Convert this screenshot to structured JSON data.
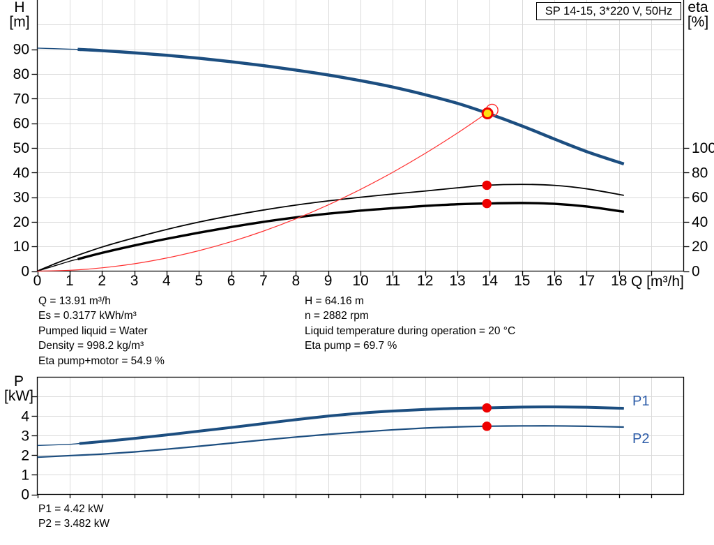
{
  "title_box": "SP 14-15, 3*220 V, 50Hz",
  "colors": {
    "curve_blue": "#1c4e80",
    "eta_black": "#000000",
    "system_red": "#ff3030",
    "dot_red": "#ee0000",
    "point_yellow": "#ffe011",
    "grid_gray": "#dadada",
    "axis_black": "#000000",
    "label_blue": "#2d5ca8"
  },
  "top_chart": {
    "y_axis_title": [
      "H",
      "[m]"
    ],
    "y2_axis_title": [
      "eta",
      "[%]"
    ],
    "x_axis_title": "Q [m³/h]"
  },
  "bottom_chart": {
    "y_axis_title": [
      "P",
      "[kW]"
    ],
    "series_labels": [
      "P1",
      "P2"
    ]
  },
  "info_top_left": [
    "Q = 13.91 m³/h",
    "Es = 0.3177 kWh/m³",
    "Pumped liquid = Water",
    "Density = 998.2 kg/m³",
    "Eta pump+motor = 54.9 %"
  ],
  "info_top_right": [
    "H = 64.16 m",
    "n = 2882 rpm",
    "Liquid temperature during operation = 20 °C",
    "Eta pump = 69.7 %"
  ],
  "info_bottom": [
    "P1 = 4.42 kW",
    "P2 = 3.482 kW"
  ],
  "chart_data": [
    {
      "type": "line",
      "title": "SP 14-15, 3*220 V, 50Hz",
      "xlabel": "Q [m³/h]",
      "ylabel": "H [m]",
      "y2label": "eta [%]",
      "xlim": [
        0,
        20
      ],
      "ylim": [
        0,
        110
      ],
      "y2lim": [
        0,
        220
      ],
      "grid": true,
      "legend_position": "none",
      "x_ticks": [
        0,
        1,
        2,
        3,
        4,
        5,
        6,
        7,
        8,
        9,
        10,
        11,
        12,
        13,
        14,
        15,
        16,
        17,
        18
      ],
      "y_ticks": [
        0,
        10,
        20,
        30,
        40,
        50,
        60,
        70,
        80,
        90
      ],
      "y2_ticks": [
        0,
        20,
        40,
        60,
        80,
        100
      ],
      "series": [
        {
          "name": "head-curve",
          "axis": "y",
          "color": "#1c4e80",
          "width": 4.4,
          "thin_width": 1.4,
          "thick_from": 1.25,
          "points": [
            [
              0,
              90.5
            ],
            [
              1,
              90.1
            ],
            [
              1.25,
              90.0
            ],
            [
              2,
              89.5
            ],
            [
              3,
              88.6
            ],
            [
              4,
              87.6
            ],
            [
              5,
              86.4
            ],
            [
              6,
              85.0
            ],
            [
              7,
              83.4
            ],
            [
              8,
              81.6
            ],
            [
              9,
              79.6
            ],
            [
              10,
              77.3
            ],
            [
              11,
              74.7
            ],
            [
              12,
              71.6
            ],
            [
              13,
              68.1
            ],
            [
              13.91,
              64.16
            ],
            [
              15,
              58.9
            ],
            [
              16,
              53.6
            ],
            [
              17,
              48.5
            ],
            [
              18.15,
              43.5
            ]
          ]
        },
        {
          "name": "eta-pump",
          "axis": "y2",
          "color": "#000000",
          "width": 1.8,
          "points": [
            [
              0,
              0
            ],
            [
              0.5,
              5.5
            ],
            [
              1,
              10.5
            ],
            [
              2,
              19.5
            ],
            [
              3,
              27.0
            ],
            [
              4,
              33.8
            ],
            [
              5,
              39.8
            ],
            [
              6,
              45.0
            ],
            [
              7,
              49.6
            ],
            [
              8,
              53.6
            ],
            [
              9,
              57.0
            ],
            [
              10,
              60.0
            ],
            [
              11,
              62.6
            ],
            [
              12,
              65.0
            ],
            [
              13,
              67.6
            ],
            [
              13.91,
              69.7
            ],
            [
              15,
              70.4
            ],
            [
              16,
              69.6
            ],
            [
              17,
              66.8
            ],
            [
              18.15,
              61.5
            ]
          ]
        },
        {
          "name": "eta-pump-motor",
          "axis": "y2",
          "color": "#000000",
          "width": 3.4,
          "thin_width": 1.4,
          "thick_from": 1.25,
          "points": [
            [
              0,
              0
            ],
            [
              0.5,
              4.0
            ],
            [
              1,
              8.0
            ],
            [
              1.25,
              9.7
            ],
            [
              2,
              14.8
            ],
            [
              3,
              20.8
            ],
            [
              4,
              26.2
            ],
            [
              5,
              31.2
            ],
            [
              6,
              35.8
            ],
            [
              7,
              40.0
            ],
            [
              8,
              43.6
            ],
            [
              9,
              46.6
            ],
            [
              10,
              49.1
            ],
            [
              11,
              51.1
            ],
            [
              12,
              52.9
            ],
            [
              13,
              54.3
            ],
            [
              13.91,
              54.9
            ],
            [
              15,
              55.3
            ],
            [
              16,
              54.6
            ],
            [
              17,
              52.4
            ],
            [
              18.15,
              48.2
            ]
          ]
        },
        {
          "name": "system-curve",
          "axis": "y",
          "color": "#ff3030",
          "width": 1.2,
          "points": [
            [
              0,
              0
            ],
            [
              1,
              0.33
            ],
            [
              2,
              1.33
            ],
            [
              3,
              2.98
            ],
            [
              4,
              5.31
            ],
            [
              5,
              8.29
            ],
            [
              6,
              11.94
            ],
            [
              7,
              16.25
            ],
            [
              8,
              21.22
            ],
            [
              9,
              26.86
            ],
            [
              10,
              33.16
            ],
            [
              11,
              40.12
            ],
            [
              12,
              47.75
            ],
            [
              13,
              56.04
            ],
            [
              13.91,
              64.16
            ]
          ]
        }
      ],
      "markers": [
        {
          "name": "duty-point-ring",
          "axis": "y",
          "x": 14.07,
          "y": 65.3,
          "r": 8.5,
          "fill": "none",
          "stroke": "#ff3030",
          "sw": 1.4
        },
        {
          "name": "rated-duty-point",
          "axis": "y",
          "x": 13.93,
          "y": 64.0,
          "r": 7,
          "fill": "#ffe011",
          "stroke": "#ee0000",
          "sw": 3
        },
        {
          "name": "eta-pump-dot",
          "axis": "y2",
          "x": 13.91,
          "y": 69.7,
          "r": 6.7,
          "fill": "#ee0000"
        },
        {
          "name": "eta-pump-motor-dot",
          "axis": "y2",
          "x": 13.91,
          "y": 54.9,
          "r": 6.7,
          "fill": "#ee0000"
        }
      ],
      "annotations": {
        "operating_point": {
          "Q_m3h": 13.91,
          "H_m": 64.16,
          "eta_pump_pct": 69.7,
          "eta_pump_motor_pct": 54.9
        }
      }
    },
    {
      "type": "line",
      "title": "",
      "xlabel": "",
      "ylabel": "P [kW]",
      "xlim": [
        0,
        20
      ],
      "ylim": [
        0,
        6
      ],
      "grid": true,
      "legend_position": "right-inline",
      "x_ticks": [],
      "y_ticks": [
        0,
        1,
        2,
        3,
        4
      ],
      "y_ticks_unlabeled": [
        5
      ],
      "series": [
        {
          "name": "P1",
          "axis": "y",
          "color": "#1c4e80",
          "width": 4.0,
          "thin_width": 1.4,
          "thick_from": 1.3,
          "points": [
            [
              0,
              2.5
            ],
            [
              1,
              2.56
            ],
            [
              1.3,
              2.6
            ],
            [
              2,
              2.7
            ],
            [
              3,
              2.86
            ],
            [
              4,
              3.04
            ],
            [
              5,
              3.23
            ],
            [
              6,
              3.42
            ],
            [
              7,
              3.62
            ],
            [
              8,
              3.82
            ],
            [
              9,
              4.0
            ],
            [
              10,
              4.15
            ],
            [
              11,
              4.26
            ],
            [
              12,
              4.34
            ],
            [
              13,
              4.4
            ],
            [
              13.91,
              4.42
            ],
            [
              15,
              4.46
            ],
            [
              16,
              4.47
            ],
            [
              17,
              4.45
            ],
            [
              18.15,
              4.4
            ]
          ]
        },
        {
          "name": "P2",
          "axis": "y",
          "color": "#1c4e80",
          "width": 2.2,
          "points": [
            [
              0,
              1.9
            ],
            [
              1,
              1.98
            ],
            [
              2,
              2.06
            ],
            [
              3,
              2.17
            ],
            [
              4,
              2.31
            ],
            [
              5,
              2.46
            ],
            [
              6,
              2.62
            ],
            [
              7,
              2.78
            ],
            [
              8,
              2.93
            ],
            [
              9,
              3.07
            ],
            [
              10,
              3.19
            ],
            [
              11,
              3.3
            ],
            [
              12,
              3.39
            ],
            [
              13,
              3.45
            ],
            [
              13.91,
              3.482
            ],
            [
              15,
              3.5
            ],
            [
              16,
              3.5
            ],
            [
              17,
              3.48
            ],
            [
              18.15,
              3.44
            ]
          ]
        }
      ],
      "markers": [
        {
          "name": "p1-dot",
          "axis": "y",
          "x": 13.91,
          "y": 4.42,
          "r": 6.7,
          "fill": "#ee0000"
        },
        {
          "name": "p2-dot",
          "axis": "y",
          "x": 13.91,
          "y": 3.482,
          "r": 6.7,
          "fill": "#ee0000"
        }
      ],
      "annotations": {
        "P1_kW": 4.42,
        "P2_kW": 3.482
      }
    }
  ]
}
